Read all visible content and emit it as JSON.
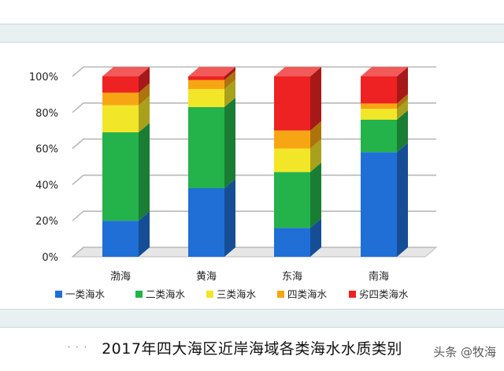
{
  "chart_data": {
    "type": "bar",
    "stacked": true,
    "percent": true,
    "three_d": true,
    "categories": [
      "渤海",
      "黄海",
      "东海",
      "南海"
    ],
    "series": [
      {
        "name": "一类海水",
        "color": "#1f6fd6",
        "values": [
          20,
          38,
          16,
          58
        ]
      },
      {
        "name": "二类海水",
        "color": "#24b24a",
        "values": [
          49,
          45,
          31,
          18
        ]
      },
      {
        "name": "三类海水",
        "color": "#f2e628",
        "values": [
          15,
          10,
          13,
          6
        ]
      },
      {
        "name": "四类海水",
        "color": "#f7a613",
        "values": [
          7,
          5,
          10,
          3
        ]
      },
      {
        "name": "劣四类海水",
        "color": "#ee2222",
        "values": [
          9,
          2,
          30,
          15
        ]
      }
    ],
    "ylim": [
      0,
      100
    ],
    "yticks": [
      "0%",
      "20%",
      "40%",
      "60%",
      "80%",
      "100%"
    ],
    "grid": true,
    "legend_position": "bottom"
  },
  "caption": {
    "title": "2017年四大海区近岸海域各类海水水质类别"
  },
  "watermark": {
    "text": "头条 @牧海"
  }
}
